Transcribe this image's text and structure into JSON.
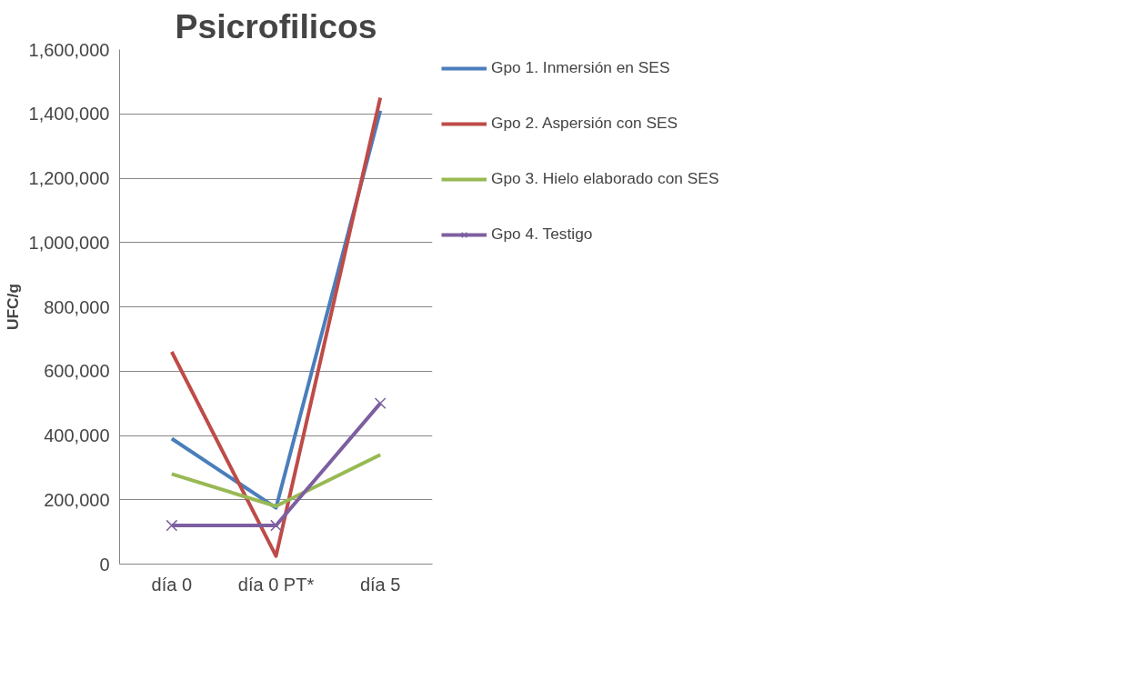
{
  "chart_data": {
    "type": "line",
    "title": "Psicrofilicos",
    "ylabel": "UFC/g",
    "categories": [
      "día 0",
      "día 0 PT*",
      "día 5"
    ],
    "ylim": [
      0,
      1600000
    ],
    "yticks": [
      {
        "value": 0,
        "label": "0"
      },
      {
        "value": 200000,
        "label": "200,000"
      },
      {
        "value": 400000,
        "label": "400,000"
      },
      {
        "value": 600000,
        "label": "600,000"
      },
      {
        "value": 800000,
        "label": "800,000"
      },
      {
        "value": 1000000,
        "label": "1,000,000"
      },
      {
        "value": 1200000,
        "label": "1,200,000"
      },
      {
        "value": 1400000,
        "label": "1,400,000"
      },
      {
        "value": 1600000,
        "label": "1,600,000"
      }
    ],
    "grid": "y",
    "legend": "right",
    "line_style": "solid",
    "series": [
      {
        "name": "Gpo 1. Inmersión en SES",
        "color": "#4a7ebb",
        "values": [
          390000,
          175000,
          1410000
        ],
        "marker": "none"
      },
      {
        "name": "Gpo 2. Aspersión con SES",
        "color": "#be4b48",
        "values": [
          660000,
          25000,
          1450000
        ],
        "marker": "none"
      },
      {
        "name": "Gpo 3. Hielo elaborado con SES",
        "color": "#98b954",
        "values": [
          280000,
          180000,
          340000
        ],
        "marker": "none"
      },
      {
        "name": "Gpo 4. Testigo",
        "color": "#7d5fa0",
        "values": [
          120000,
          120000,
          500000
        ],
        "marker": "cross"
      }
    ]
  }
}
